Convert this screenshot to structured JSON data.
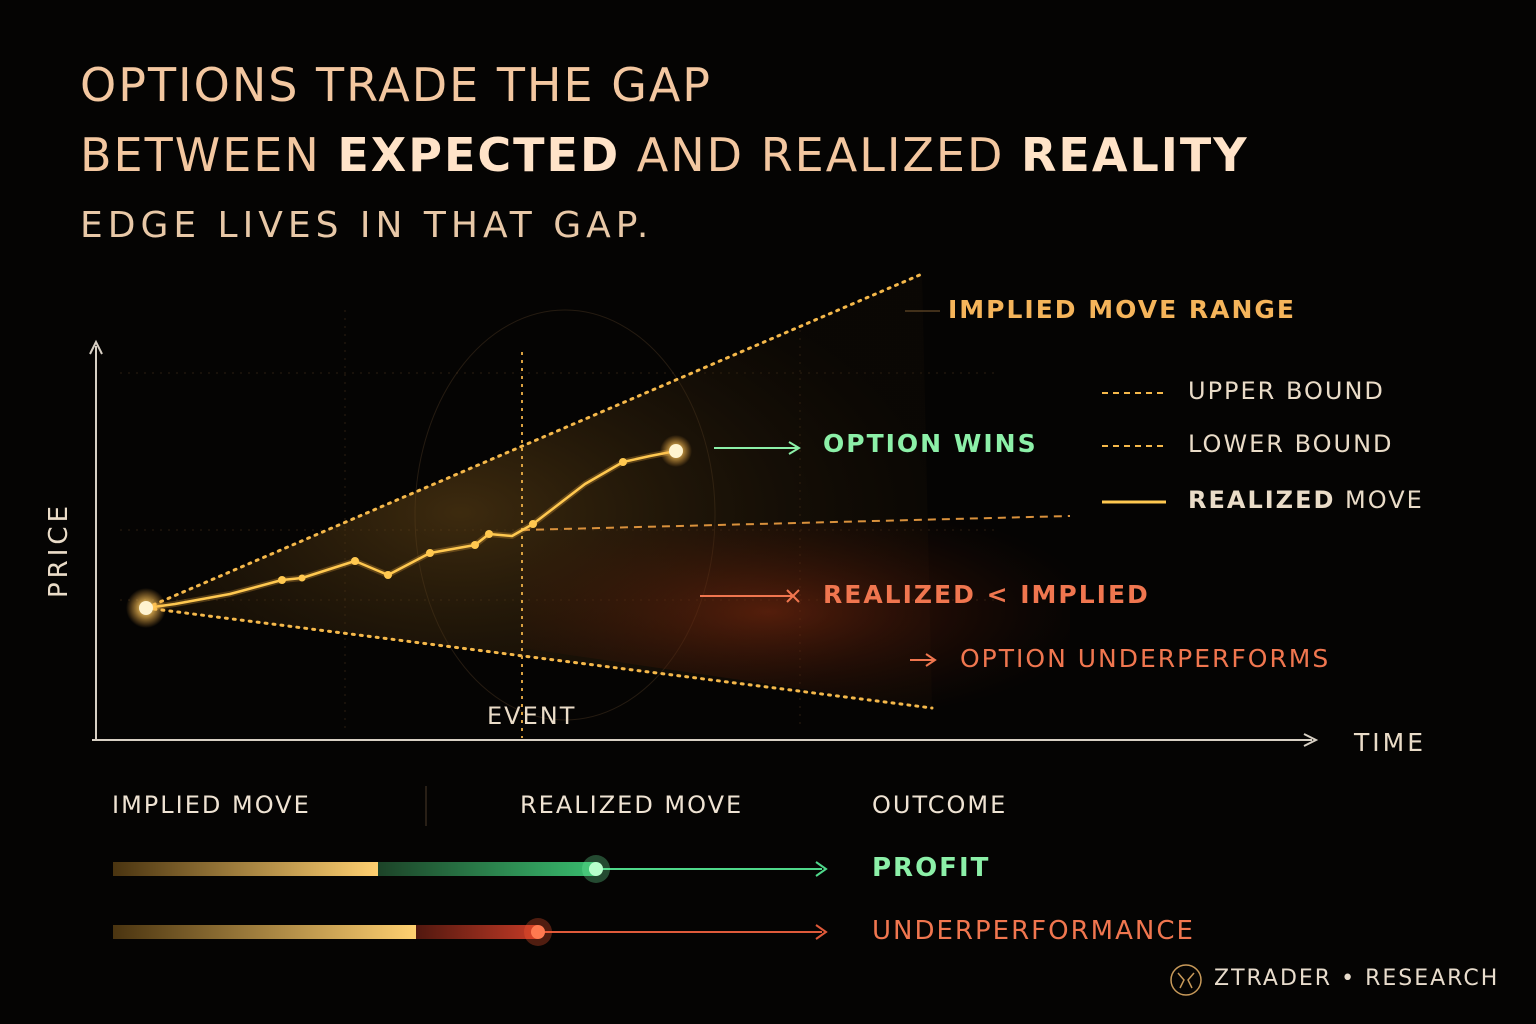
{
  "header": {
    "title_line1": "OPTIONS TRADE THE GAP",
    "title_line2_part1": "BETWEEN ",
    "title_line2_bold1": "EXPECTED",
    "title_line2_part2": " AND REALIZED ",
    "title_line2_bold2": "REALITY",
    "subtitle": "EDGE LIVES IN THAT GAP."
  },
  "diagram": {
    "y_axis_label": "PRICE",
    "x_axis_label": "TIME",
    "event_label": "EVENT",
    "range_label": "IMPLIED MOVE RANGE",
    "option_wins": "OPTION WINS",
    "realized_lt_implied": "REALIZED < IMPLIED",
    "option_underperforms": "OPTION UNDERPERFORMS",
    "legend": {
      "upper": "UPPER BOUND",
      "lower": "LOWER BOUND",
      "realized_bold": "REALIZED",
      "realized_rest": " MOVE"
    }
  },
  "outcome_table": {
    "headers": [
      "IMPLIED MOVE",
      "REALIZED MOVE",
      "OUTCOME"
    ],
    "rows": [
      {
        "outcome": "PROFIT",
        "color": "#8cf0a8"
      },
      {
        "outcome": "UNDERPERFORMANCE",
        "color": "#f0764f"
      }
    ]
  },
  "brand": {
    "name": "ZTRADER",
    "separator": "•",
    "section": "RESEARCH"
  },
  "colors": {
    "accent": "#f5b45a",
    "profit": "#8cf0a8",
    "loss": "#f0764f",
    "background": "#050403"
  }
}
